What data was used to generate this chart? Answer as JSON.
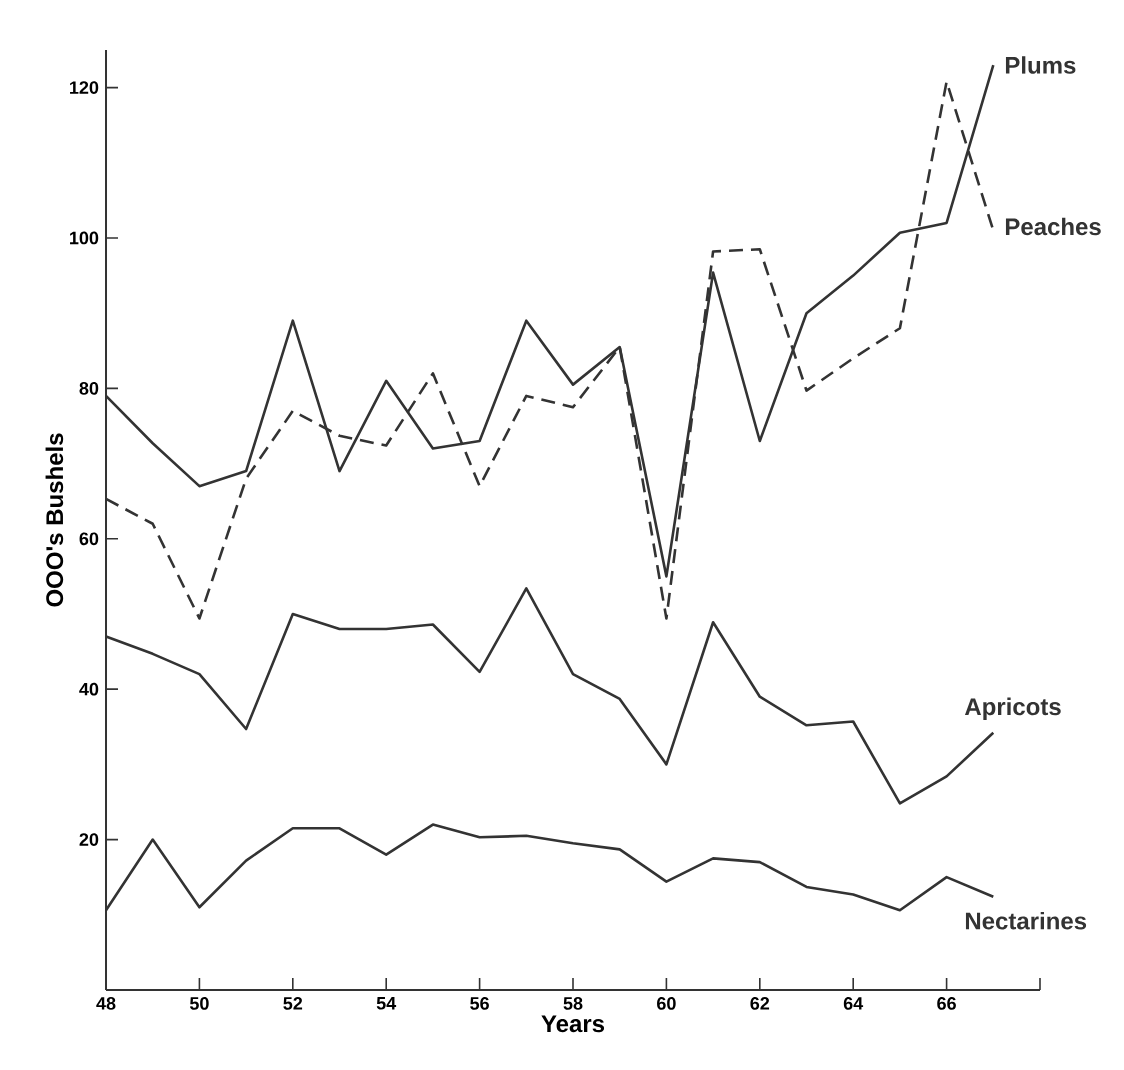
{
  "chart_data": {
    "type": "line",
    "xlabel": "Years",
    "ylabel": "OOO's Bushels",
    "x": [
      48,
      49,
      50,
      51,
      52,
      53,
      54,
      55,
      56,
      57,
      58,
      59,
      60,
      61,
      62,
      63,
      64,
      65,
      66,
      67
    ],
    "xlim": [
      48,
      68
    ],
    "xticks": [
      48,
      50,
      52,
      54,
      56,
      58,
      60,
      62,
      64,
      66,
      {
        "value": 68,
        "label": null
      }
    ],
    "ylim": [
      0,
      125
    ],
    "yticks": [
      20,
      40,
      60,
      80,
      100,
      120
    ],
    "legend": false,
    "grid": false,
    "series": [
      {
        "name": "Plums",
        "color": "#333333",
        "line_style": "solid",
        "values": [
          79,
          72.7,
          67,
          69,
          89,
          69,
          81,
          72,
          73,
          89,
          80.5,
          85.5,
          55,
          95.4,
          73,
          90,
          95,
          100.7,
          102,
          123
        ]
      },
      {
        "name": "Peaches",
        "color": "#333333",
        "line_style": "dashed",
        "values": [
          65.3,
          62,
          49.4,
          68,
          77,
          73.7,
          72.4,
          82,
          67,
          79,
          77.5,
          85.5,
          49.4,
          98.2,
          98.5,
          79.7,
          84,
          88,
          120.8,
          101
        ]
      },
      {
        "name": "Apricots",
        "color": "#333333",
        "line_style": "solid",
        "values": [
          47,
          44.7,
          42,
          34.7,
          50,
          48,
          48,
          48.6,
          42.3,
          53.4,
          42,
          38.7,
          30,
          48.9,
          39,
          35.2,
          35.7,
          24.8,
          28.4,
          34.2
        ]
      },
      {
        "name": "Nectarines",
        "color": "#333333",
        "line_style": "solid",
        "values": [
          10.6,
          20,
          11,
          17.2,
          21.5,
          21.5,
          18,
          22,
          20.3,
          20.5,
          19.5,
          18.7,
          14.4,
          17.5,
          17,
          13.7,
          12.7,
          10.6,
          15,
          12.4
        ]
      }
    ]
  }
}
